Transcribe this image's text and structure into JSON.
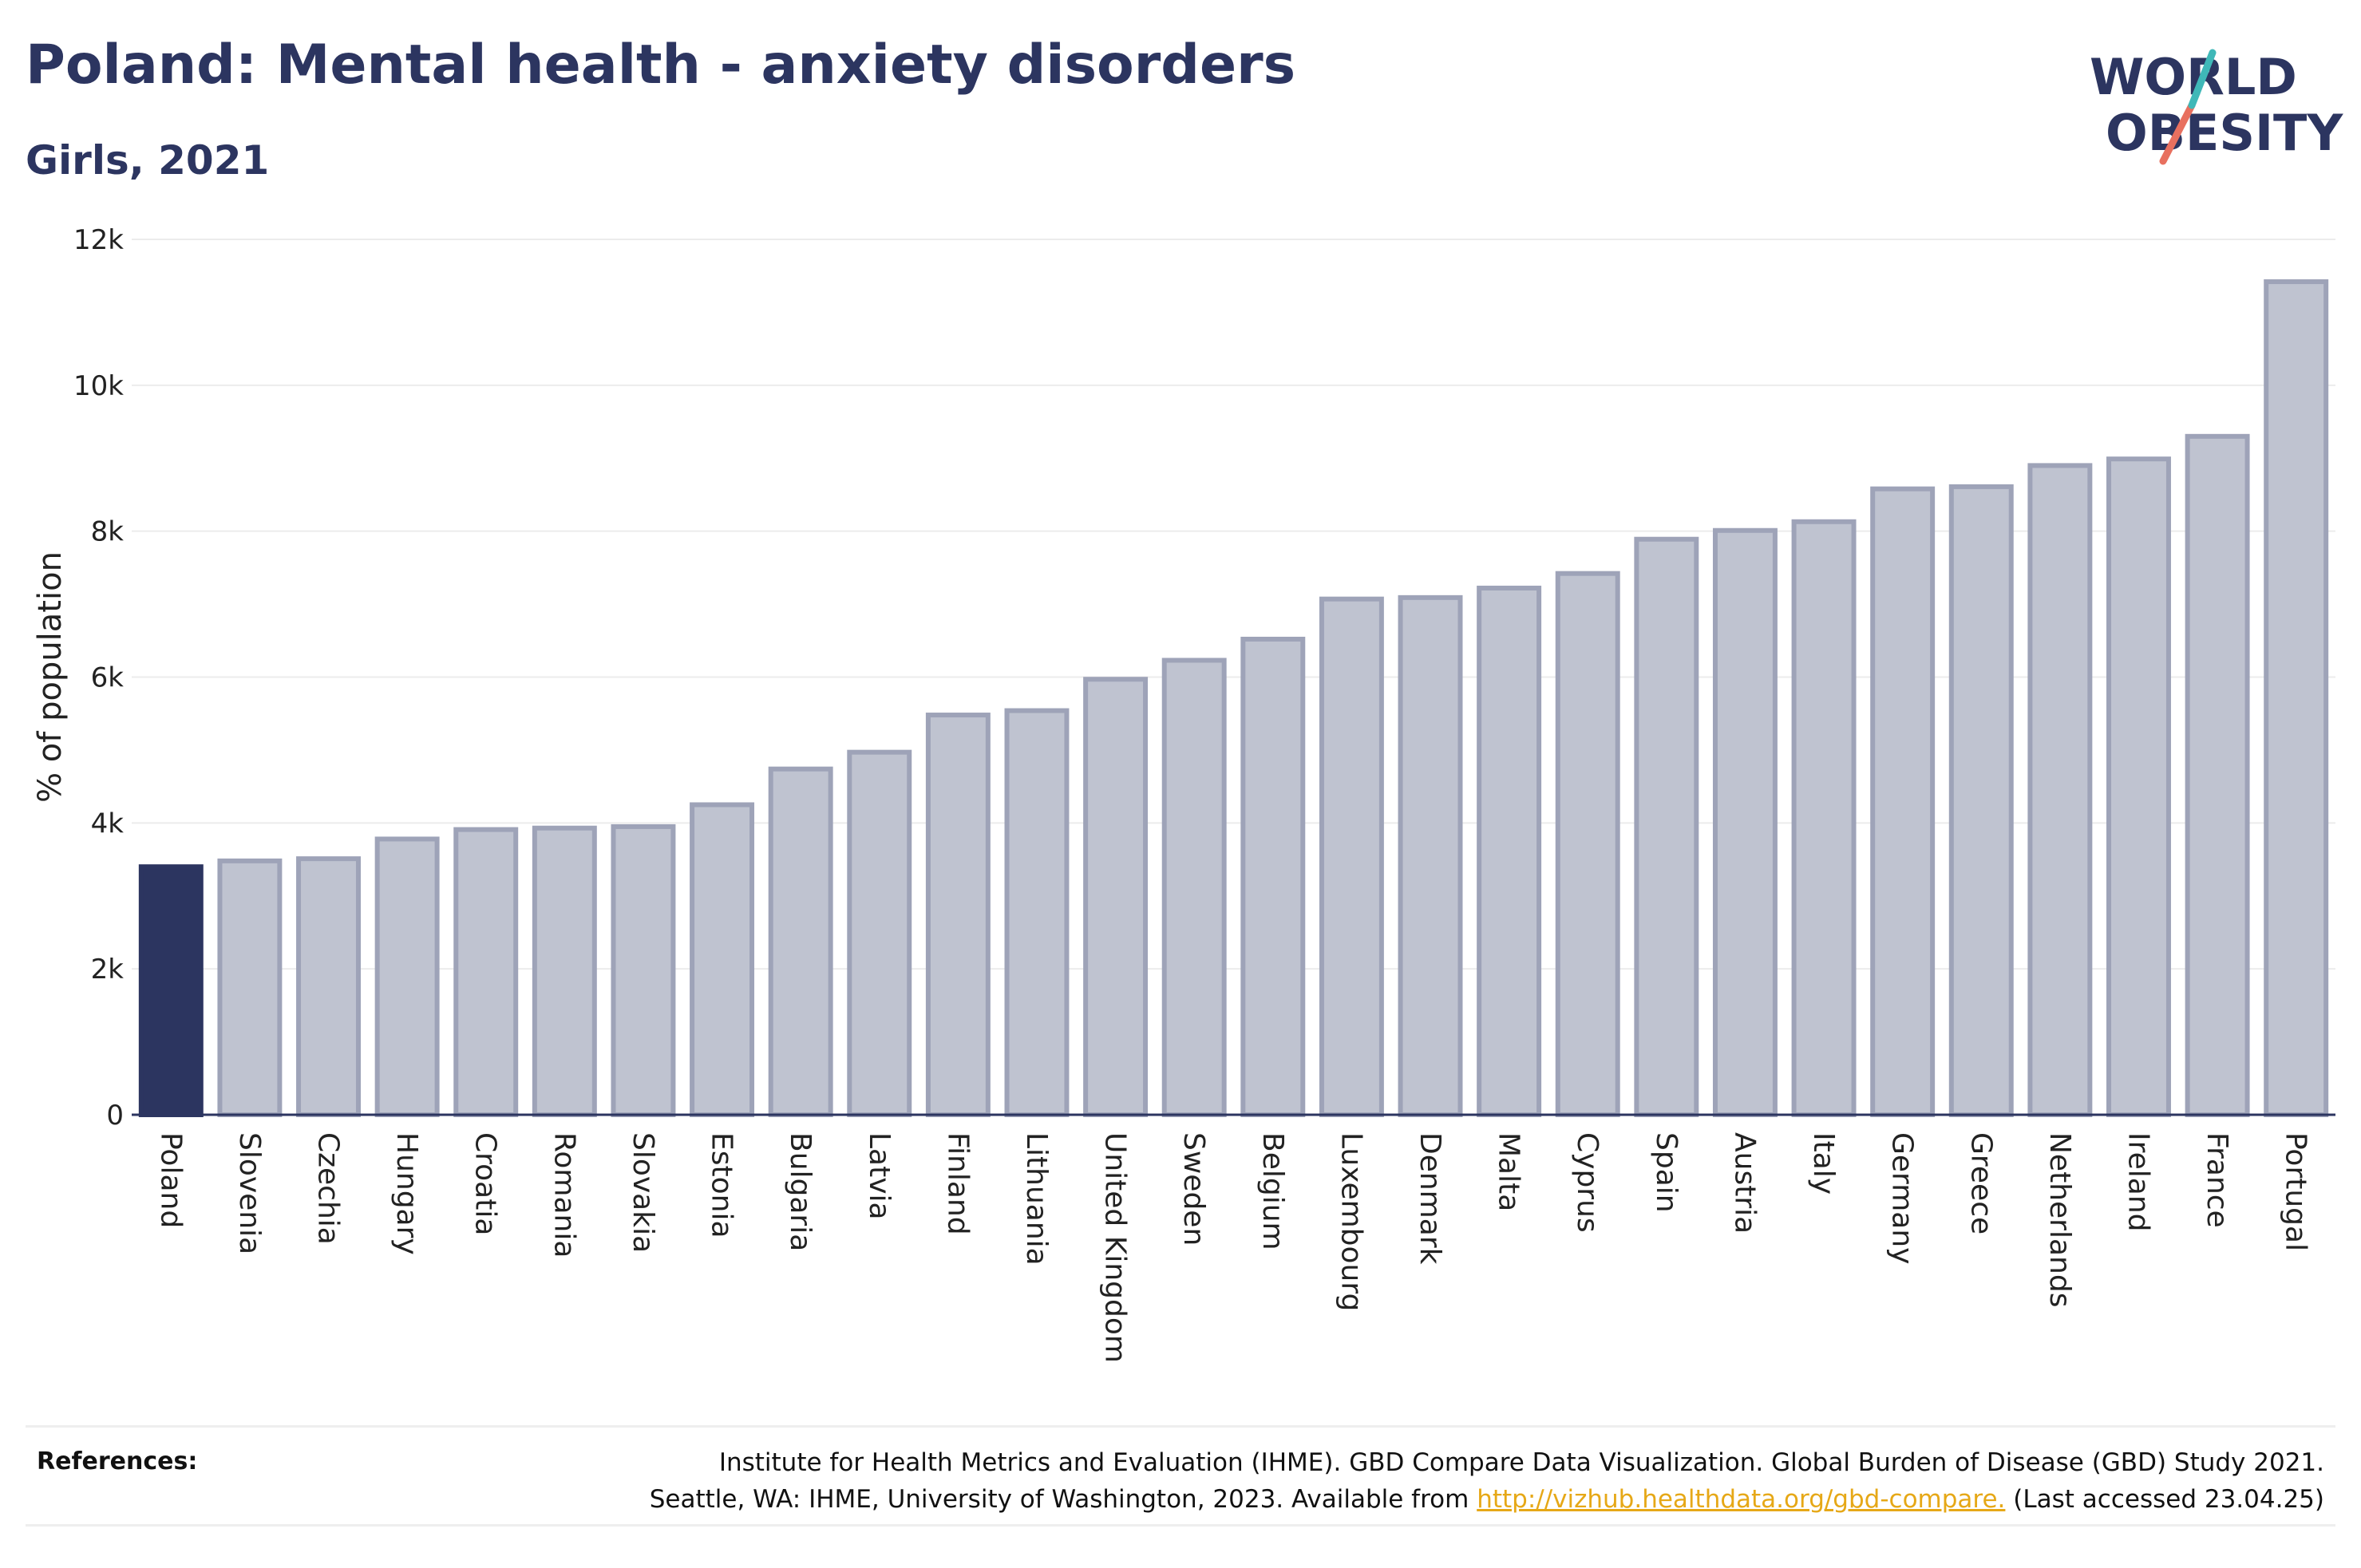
{
  "title": "Poland: Mental health - anxiety disorders",
  "subtitle": "Girls, 2021",
  "logo": {
    "line1": "WORLD",
    "line2": "OBESITY"
  },
  "colors": {
    "highlight": "#2c3560",
    "bar_fill": "#bfc3d0",
    "bar_stroke": "#9ea3b8",
    "link": "#e6a817",
    "logo_slash_teal": "#3fb8b8",
    "logo_slash_red": "#e8705f"
  },
  "chart_data": {
    "type": "bar",
    "ylabel": "% of population",
    "ylim": [
      0,
      12000
    ],
    "yticks": [
      0,
      2000,
      4000,
      6000,
      8000,
      10000,
      12000
    ],
    "ytick_labels": [
      "0",
      "2k",
      "4k",
      "6k",
      "8k",
      "10k",
      "12k"
    ],
    "grid": true,
    "highlight": "Poland",
    "categories": [
      "Poland",
      "Slovenia",
      "Czechia",
      "Hungary",
      "Croatia",
      "Romania",
      "Slovakia",
      "Estonia",
      "Bulgaria",
      "Latvia",
      "Finland",
      "Lithuania",
      "United Kingdom",
      "Sweden",
      "Belgium",
      "Luxembourg",
      "Denmark",
      "Malta",
      "Cyprus",
      "Spain",
      "Austria",
      "Italy",
      "Germany",
      "Greece",
      "Netherlands",
      "Ireland",
      "France",
      "Portugal"
    ],
    "values": [
      3400,
      3480,
      3510,
      3780,
      3910,
      3930,
      3950,
      4250,
      4740,
      4970,
      5480,
      5540,
      5970,
      6230,
      6520,
      7070,
      7090,
      7220,
      7420,
      7890,
      8010,
      8130,
      8580,
      8610,
      8900,
      8990,
      9300,
      11420
    ]
  },
  "references": {
    "heading": "References:",
    "line1": "Institute for Health Metrics and Evaluation (IHME). GBD Compare Data Visualization. Global Burden of Disease (GBD) Study 2021.",
    "line2_before": "Seattle, WA: IHME, University of Washington, 2023. Available from",
    "link_text": "http://vizhub.healthdata.org/gbd-compare.",
    "line2_after": "(Last accessed 23.04.25)"
  }
}
